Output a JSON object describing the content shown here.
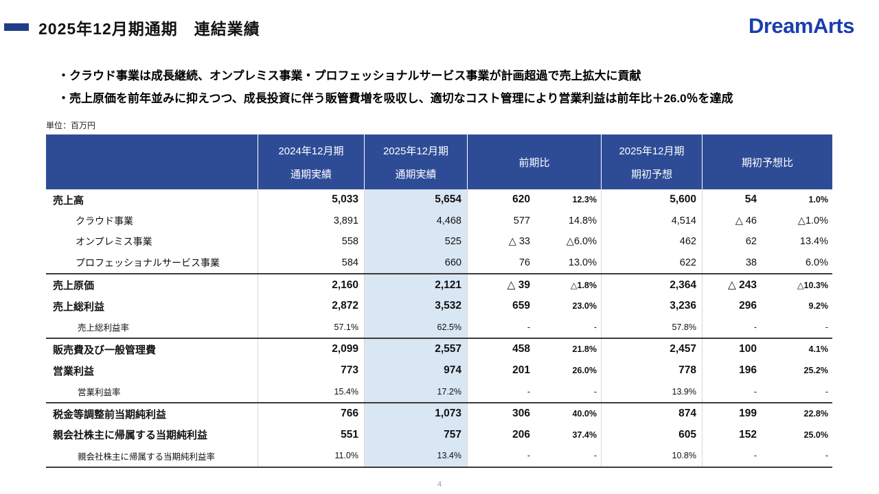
{
  "slide": {
    "title": "2025年12月期通期　連結業績",
    "logo": "DreamArts",
    "bullets": [
      "・クラウド事業は成長継続、オンプレミス事業・プロフェッショナルサービス事業が計画超過で売上拡大に貢献",
      "・売上原価を前年並みに抑えつつ、成長投資に伴う販管費増を吸収し、適切なコスト管理により営業利益は前年比＋26.0％を達成"
    ],
    "unit_label": "単位：百万円",
    "page_number": "4"
  },
  "table": {
    "header": {
      "fy2024": {
        "line1": "2024年12月期",
        "line2": "通期実績"
      },
      "fy2025": {
        "line1": "2025年12月期",
        "line2": "通期実績"
      },
      "yoy": "前期比",
      "forecast": {
        "line1": "2025年12月期",
        "line2": "期初予想"
      },
      "vs_forecast": "期初予想比"
    },
    "rows": [
      {
        "label": "売上高",
        "type": "main",
        "group": false,
        "cells": [
          "5,033",
          "5,654",
          "620",
          "12.3%",
          "5,600",
          "54",
          "1.0%"
        ]
      },
      {
        "label": "クラウド事業",
        "type": "seg",
        "group": false,
        "cells": [
          "3,891",
          "4,468",
          "577",
          "14.8%",
          "4,514",
          "△ 46",
          "△1.0%"
        ]
      },
      {
        "label": "オンプレミス事業",
        "type": "seg",
        "group": false,
        "cells": [
          "558",
          "525",
          "△ 33",
          "△6.0%",
          "462",
          "62",
          "13.4%"
        ]
      },
      {
        "label": "プロフェッショナルサービス事業",
        "type": "seg",
        "group": false,
        "cells": [
          "584",
          "660",
          "76",
          "13.0%",
          "622",
          "38",
          "6.0%"
        ]
      },
      {
        "label": "売上原価",
        "type": "main",
        "group": true,
        "cells": [
          "2,160",
          "2,121",
          "△ 39",
          "△1.8%",
          "2,364",
          "△ 243",
          "△10.3%"
        ]
      },
      {
        "label": "売上総利益",
        "type": "main",
        "group": false,
        "cells": [
          "2,872",
          "3,532",
          "659",
          "23.0%",
          "3,236",
          "296",
          "9.2%"
        ]
      },
      {
        "label": "売上総利益率",
        "type": "rate",
        "group": false,
        "cells": [
          "57.1%",
          "62.5%",
          "-",
          "-",
          "57.8%",
          "-",
          "-"
        ]
      },
      {
        "label": "販売費及び一般管理費",
        "type": "main",
        "group": true,
        "cells": [
          "2,099",
          "2,557",
          "458",
          "21.8%",
          "2,457",
          "100",
          "4.1%"
        ]
      },
      {
        "label": "営業利益",
        "type": "main",
        "group": false,
        "cells": [
          "773",
          "974",
          "201",
          "26.0%",
          "778",
          "196",
          "25.2%"
        ]
      },
      {
        "label": "営業利益率",
        "type": "rate",
        "group": false,
        "cells": [
          "15.4%",
          "17.2%",
          "-",
          "-",
          "13.9%",
          "-",
          "-"
        ]
      },
      {
        "label": "税金等調整前当期純利益",
        "type": "main",
        "group": true,
        "cells": [
          "766",
          "1,073",
          "306",
          "40.0%",
          "874",
          "199",
          "22.8%"
        ]
      },
      {
        "label": "親会社株主に帰属する当期純利益",
        "type": "main",
        "group": false,
        "cells": [
          "551",
          "757",
          "206",
          "37.4%",
          "605",
          "152",
          "25.0%"
        ]
      },
      {
        "label": "親会社株主に帰属する当期純利益率",
        "type": "rate",
        "group": false,
        "cells": [
          "11.0%",
          "13.4%",
          "-",
          "-",
          "10.8%",
          "-",
          "-"
        ]
      }
    ]
  },
  "colors": {
    "header_bg": "#2e4c96",
    "highlight": "#d9e6f3",
    "accent": "#1f3c88",
    "logo_blue": "#1b3eae",
    "group_line": "#3a3a3a"
  }
}
